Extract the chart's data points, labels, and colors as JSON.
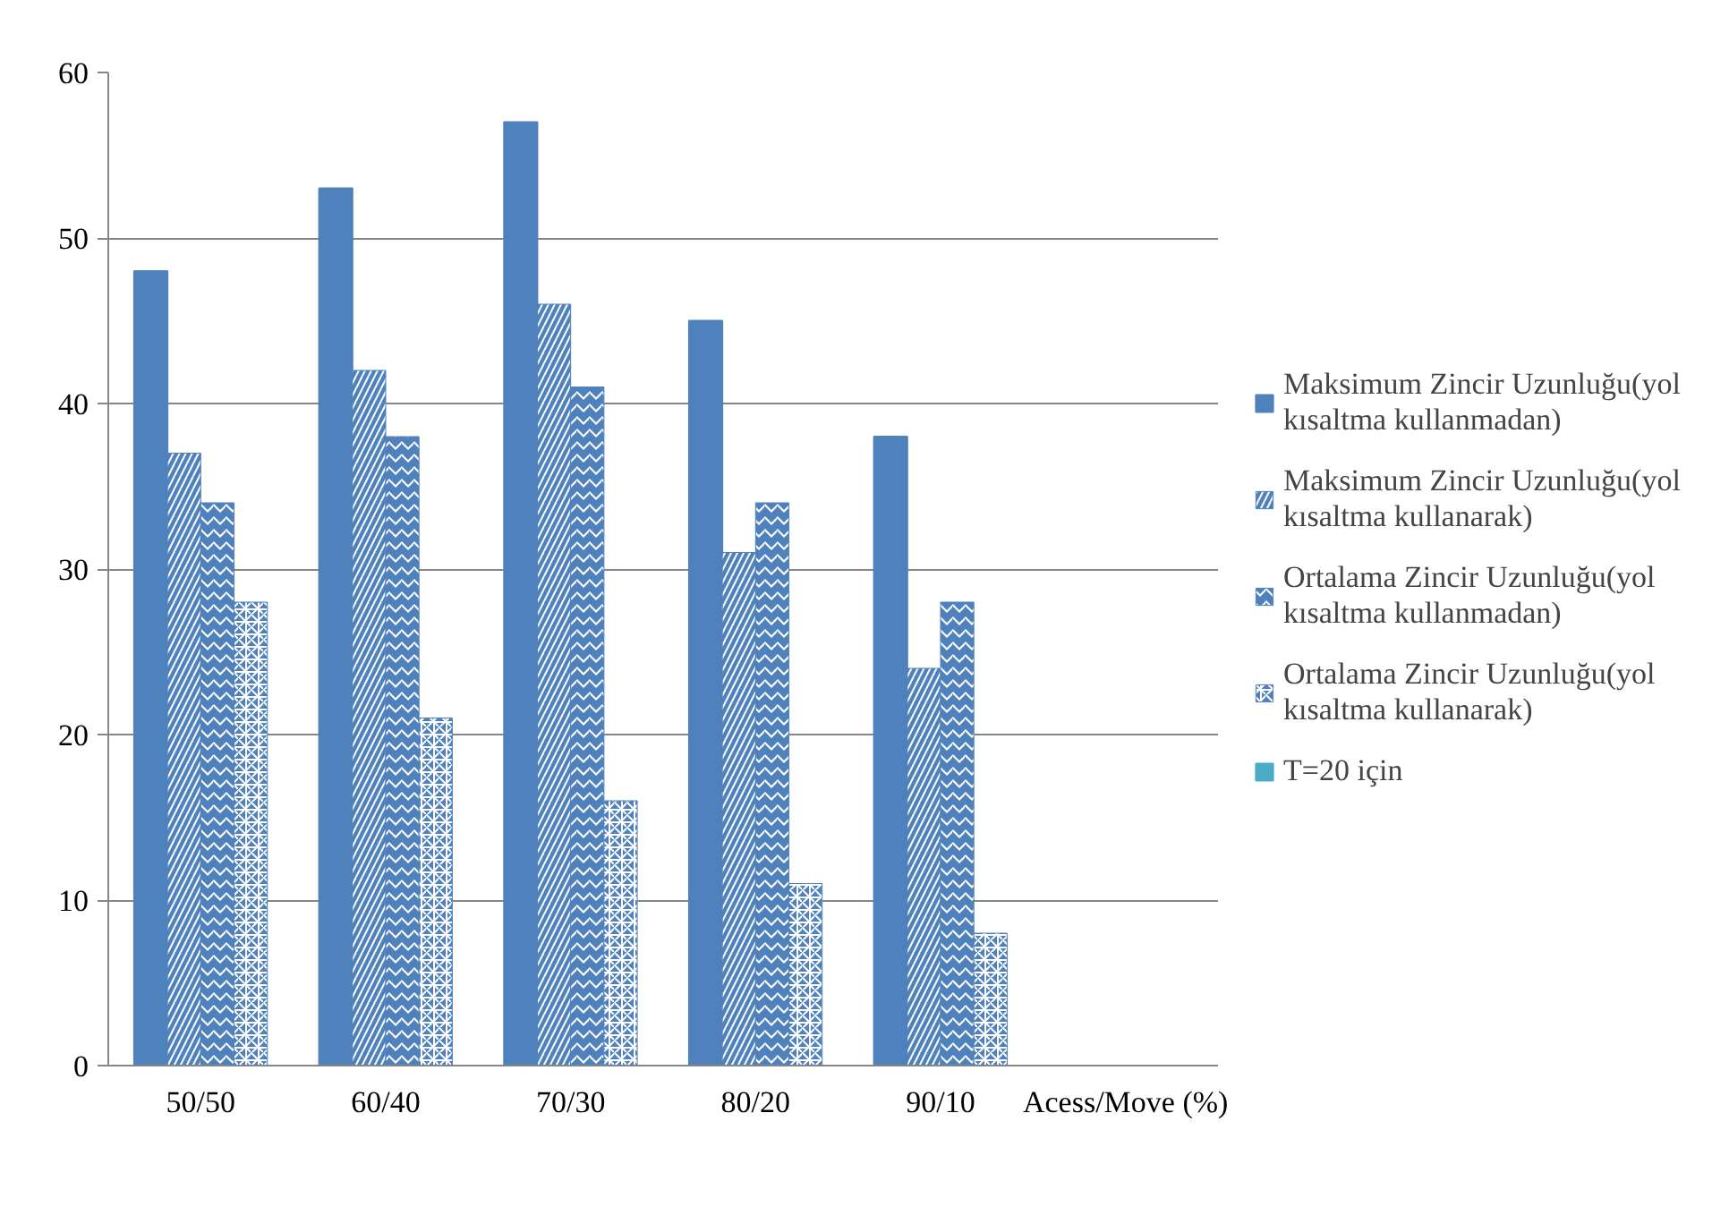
{
  "chart_data": {
    "type": "bar",
    "categories": [
      "50/50",
      "60/40",
      "70/30",
      "80/20",
      "90/10",
      "Acess/Move (%)"
    ],
    "series": [
      {
        "name": "Maksimum Zincir Uzunluğu(yol kısaltma kullanmadan)",
        "color": "#4f81bd",
        "values": [
          48,
          53,
          57,
          45,
          38,
          null
        ]
      },
      {
        "name": "Maksimum Zincir Uzunluğu(yol kısaltma kullanarak)",
        "color": "#4f81bd",
        "values": [
          37,
          42,
          46,
          31,
          24,
          null
        ]
      },
      {
        "name": "Ortalama Zincir Uzunluğu(yol kısaltma kullanmadan)",
        "color": "#4f81bd",
        "values": [
          34,
          38,
          41,
          34,
          28,
          null
        ]
      },
      {
        "name": "Ortalama Zincir Uzunluğu(yol kısaltma kullanarak)",
        "color": "#4f81bd",
        "values": [
          28,
          21,
          16,
          11,
          8,
          null
        ]
      },
      {
        "name": "T=20 için",
        "color": "#4bacc6",
        "values": [
          null,
          null,
          null,
          null,
          null,
          null
        ]
      }
    ],
    "ylim": [
      0,
      60
    ],
    "yticks": [
      0,
      10,
      20,
      30,
      40,
      50,
      60
    ],
    "grid": "y",
    "legend": "right"
  }
}
